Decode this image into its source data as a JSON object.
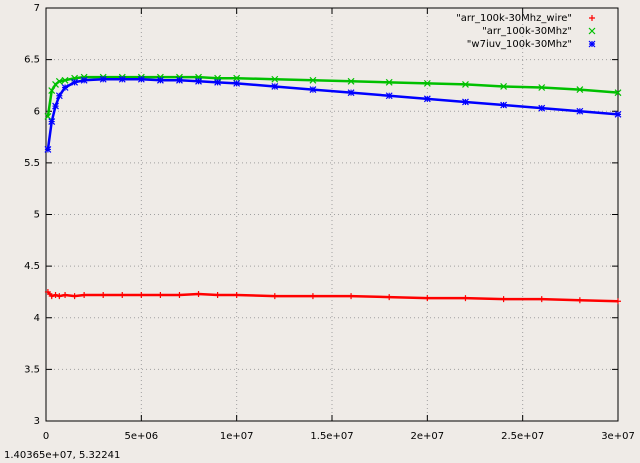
{
  "chart_data": {
    "type": "scatter",
    "x": [
      100000,
      300000,
      500000,
      700000,
      1000000,
      1500000,
      2000000,
      3000000,
      4000000,
      5000000,
      6000000,
      7000000,
      8000000,
      9000000,
      10000000,
      12000000,
      14000000,
      16000000,
      18000000,
      20000000,
      22000000,
      24000000,
      26000000,
      28000000,
      30000000
    ],
    "series": [
      {
        "name": "\"arr_100k-30Mhz_wire\"",
        "color": "#ff0000",
        "marker": "plus",
        "values": [
          4.25,
          4.21,
          4.22,
          4.21,
          4.22,
          4.21,
          4.22,
          4.22,
          4.22,
          4.22,
          4.22,
          4.22,
          4.23,
          4.22,
          4.22,
          4.21,
          4.21,
          4.21,
          4.2,
          4.19,
          4.19,
          4.18,
          4.18,
          4.17,
          4.16
        ]
      },
      {
        "name": "\"arr_100k-30Mhz\"",
        "color": "#00c000",
        "marker": "cross",
        "values": [
          5.95,
          6.2,
          6.26,
          6.29,
          6.3,
          6.32,
          6.33,
          6.33,
          6.33,
          6.33,
          6.33,
          6.33,
          6.33,
          6.32,
          6.32,
          6.31,
          6.3,
          6.29,
          6.28,
          6.27,
          6.26,
          6.24,
          6.23,
          6.21,
          6.18
        ]
      },
      {
        "name": "\"w7iuv_100k-30Mhz\"",
        "color": "#0000ff",
        "marker": "star",
        "values": [
          5.63,
          5.9,
          6.05,
          6.15,
          6.23,
          6.28,
          6.3,
          6.31,
          6.31,
          6.31,
          6.3,
          6.3,
          6.29,
          6.28,
          6.27,
          6.24,
          6.21,
          6.18,
          6.15,
          6.12,
          6.09,
          6.06,
          6.03,
          6.0,
          5.97
        ]
      }
    ],
    "xlim": [
      0,
      30000000
    ],
    "xticks": [
      0,
      {
        "value": 5000000,
        "label": "5e+06"
      },
      {
        "value": 10000000,
        "label": "1e+07"
      },
      {
        "value": 15000000,
        "label": "1.5e+07"
      },
      {
        "value": 20000000,
        "label": "2e+07"
      },
      {
        "value": 25000000,
        "label": "2.5e+07"
      },
      {
        "value": 30000000,
        "label": "3e+07"
      }
    ],
    "ylim": [
      3,
      7
    ],
    "yticks": [
      3,
      3.5,
      4,
      4.5,
      5,
      5.5,
      6,
      6.5,
      7
    ],
    "grid": true,
    "legend": "top-right"
  },
  "status_bar": "1.40365e+07,  5.32241"
}
